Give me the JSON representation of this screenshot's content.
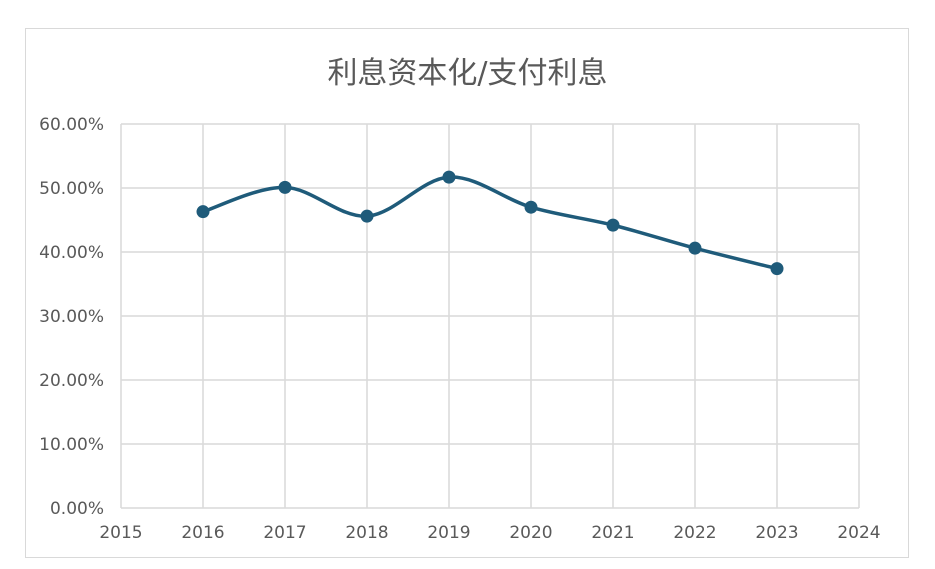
{
  "chart_data": {
    "type": "line",
    "title": "利息资本化/支付利息",
    "xlabel": "",
    "ylabel": "",
    "x": [
      2016,
      2017,
      2018,
      2019,
      2020,
      2021,
      2022,
      2023
    ],
    "series": [
      {
        "values": [
          46.3,
          50.1,
          45.6,
          51.7,
          47.0,
          44.2,
          40.6,
          37.4
        ]
      }
    ],
    "xlim": [
      2015,
      2024
    ],
    "ylim": [
      0,
      60
    ],
    "x_ticks": [
      "2015",
      "2016",
      "2017",
      "2018",
      "2019",
      "2020",
      "2021",
      "2022",
      "2023",
      "2024"
    ],
    "y_ticks": [
      "0.00%",
      "10.00%",
      "20.00%",
      "30.00%",
      "40.00%",
      "50.00%",
      "60.00%"
    ],
    "y_tick_values": [
      0,
      10,
      20,
      30,
      40,
      50,
      60
    ],
    "grid": true,
    "smooth": true,
    "legend": "none",
    "line_color": "#1f5b7a"
  }
}
